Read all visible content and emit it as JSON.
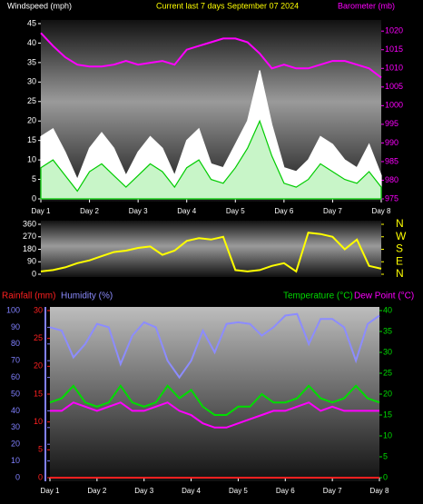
{
  "chart_data": [
    {
      "type": "area",
      "title": "Current last 7 days September 07 2024",
      "ylabel": "Windspeed (mph)",
      "y2label": "Barometer (mb)",
      "title_color": "#ffff00",
      "axis_colors": {
        "y": "#ffffff",
        "y2": "#ff00ff"
      },
      "x": [
        1,
        1.25,
        1.5,
        1.75,
        2,
        2.25,
        2.5,
        2.75,
        3,
        3.25,
        3.5,
        3.75,
        4,
        4.25,
        4.5,
        4.75,
        5,
        5.25,
        5.5,
        5.75,
        6,
        6.25,
        6.5,
        6.75,
        7,
        7.25,
        7.5,
        7.75,
        8
      ],
      "xlim": [
        1,
        8
      ],
      "xticks": [
        {
          "value": 1,
          "label": "Day 1"
        },
        {
          "value": 2,
          "label": "Day 2"
        },
        {
          "value": 3,
          "label": "Day 3"
        },
        {
          "value": 4,
          "label": "Day 4"
        },
        {
          "value": 5,
          "label": "Day 5"
        },
        {
          "value": 6,
          "label": "Day 6"
        },
        {
          "value": 7,
          "label": "Day 7"
        },
        {
          "value": 8,
          "label": "Day 8"
        }
      ],
      "ylim": [
        0,
        45
      ],
      "yticks": [
        0,
        5,
        10,
        15,
        20,
        25,
        30,
        35,
        40,
        45
      ],
      "y2lim": [
        975,
        1022
      ],
      "y2ticks": [
        975,
        980,
        985,
        990,
        995,
        1000,
        1005,
        1010,
        1015,
        1020
      ],
      "series": [
        {
          "color": "#ffffff",
          "fill": "#ffffff",
          "values": [
            16,
            18,
            12,
            5,
            13,
            17,
            13,
            6,
            12,
            16,
            13,
            6,
            15,
            18,
            9,
            8,
            14,
            20,
            33,
            19,
            8,
            7,
            10,
            16,
            14,
            10,
            8,
            14,
            6
          ]
        },
        {
          "color": "#00cc00",
          "fill": "#c8f5c8",
          "values": [
            8,
            10,
            6,
            2,
            7,
            9,
            6,
            3,
            6,
            9,
            7,
            3,
            8,
            10,
            5,
            4,
            8,
            13,
            20,
            11,
            4,
            3,
            5,
            9,
            7,
            5,
            4,
            7,
            3
          ]
        },
        {
          "color": "#ff00ff",
          "axis": "y2",
          "values": [
            1019.5,
            1016,
            1013,
            1011,
            1010.5,
            1010.5,
            1011,
            1012,
            1011,
            1011.5,
            1012,
            1011,
            1015,
            1016,
            1017,
            1018,
            1018,
            1017,
            1014,
            1010,
            1011,
            1010,
            1010,
            1011,
            1012,
            1012,
            1011,
            1010,
            1007.5
          ]
        }
      ]
    },
    {
      "type": "line",
      "axis_colors": {
        "y": "#ffffff",
        "y2": "#ffff00"
      },
      "x": [
        1,
        1.25,
        1.5,
        1.75,
        2,
        2.25,
        2.5,
        2.75,
        3,
        3.25,
        3.5,
        3.75,
        4,
        4.25,
        4.5,
        4.75,
        5,
        5.25,
        5.5,
        5.75,
        6,
        6.25,
        6.5,
        6.75,
        7,
        7.25,
        7.5,
        7.75,
        8
      ],
      "xlim": [
        1,
        8
      ],
      "ylim": [
        0,
        360
      ],
      "yticks": [
        0,
        90,
        180,
        270,
        360
      ],
      "y2lim": [
        0,
        360
      ],
      "y2ticks": [
        {
          "value": 360,
          "label": "N"
        },
        {
          "value": 270,
          "label": "W"
        },
        {
          "value": 180,
          "label": "S"
        },
        {
          "value": 90,
          "label": "E"
        },
        {
          "value": 0,
          "label": "N"
        }
      ],
      "series": [
        {
          "color": "#ffff00",
          "values": [
            20,
            30,
            50,
            80,
            100,
            130,
            160,
            170,
            190,
            200,
            140,
            170,
            240,
            260,
            250,
            270,
            30,
            20,
            30,
            60,
            80,
            20,
            300,
            290,
            270,
            180,
            250,
            60,
            40
          ]
        }
      ]
    },
    {
      "type": "line",
      "axis_colors": {
        "y": "#ff2020",
        "y2": "#00dd00",
        "y3": "#8080ff"
      },
      "x": [
        1,
        1.25,
        1.5,
        1.75,
        2,
        2.25,
        2.5,
        2.75,
        3,
        3.25,
        3.5,
        3.75,
        4,
        4.25,
        4.5,
        4.75,
        5,
        5.25,
        5.5,
        5.75,
        6,
        6.25,
        6.5,
        6.75,
        7,
        7.25,
        7.5,
        7.75,
        8
      ],
      "xlim": [
        1,
        8
      ],
      "xticks": [
        {
          "value": 1,
          "label": "Day 1"
        },
        {
          "value": 2,
          "label": "Day 2"
        },
        {
          "value": 3,
          "label": "Day 3"
        },
        {
          "value": 4,
          "label": "Day 4"
        },
        {
          "value": 5,
          "label": "Day 5"
        },
        {
          "value": 6,
          "label": "Day 6"
        },
        {
          "value": 7,
          "label": "Day 7"
        },
        {
          "value": 8,
          "label": "Day 8"
        }
      ],
      "ylim": [
        0,
        30
      ],
      "yticks": [
        0,
        5,
        10,
        15,
        20,
        25,
        30
      ],
      "y2lim": [
        0,
        40
      ],
      "y2ticks": [
        0,
        5,
        10,
        15,
        20,
        25,
        30,
        35,
        40
      ],
      "y3lim": [
        0,
        100
      ],
      "y3ticks": [
        0,
        10,
        20,
        30,
        40,
        50,
        60,
        70,
        80,
        90,
        100
      ],
      "series": [
        {
          "name": "Rainfall (mm)",
          "color": "#ff2020",
          "values": [
            0,
            0,
            0,
            0,
            0,
            0,
            0,
            0,
            0,
            0,
            0,
            0,
            0,
            0,
            0,
            0,
            0,
            0,
            0,
            0,
            0,
            0,
            0,
            0,
            0,
            0,
            0,
            0,
            0
          ]
        },
        {
          "name": "Humidity (%)",
          "color": "#8c8cff",
          "axis": "y3",
          "values": [
            90,
            88,
            72,
            80,
            92,
            90,
            68,
            85,
            93,
            90,
            70,
            60,
            70,
            88,
            75,
            92,
            93,
            92,
            85,
            90,
            97,
            98,
            80,
            95,
            95,
            90,
            70,
            92,
            97
          ]
        },
        {
          "name": "Temperature (°C)",
          "color": "#00dd00",
          "axis": "y2",
          "values": [
            18,
            19,
            22,
            18,
            17,
            18,
            22,
            18,
            17,
            18,
            22,
            19,
            21,
            17,
            15,
            15,
            17,
            17,
            20,
            18,
            18,
            19,
            22,
            19,
            18,
            19,
            22,
            19,
            18
          ]
        },
        {
          "name": "Dew Point (°C)",
          "color": "#ff00ff",
          "axis": "y2",
          "values": [
            16,
            16,
            18,
            17,
            16,
            17,
            18,
            16,
            16,
            17,
            18,
            16,
            15,
            13,
            12,
            12,
            13,
            14,
            15,
            16,
            16,
            17,
            18,
            16,
            17,
            16,
            16,
            16,
            16
          ]
        }
      ]
    }
  ]
}
